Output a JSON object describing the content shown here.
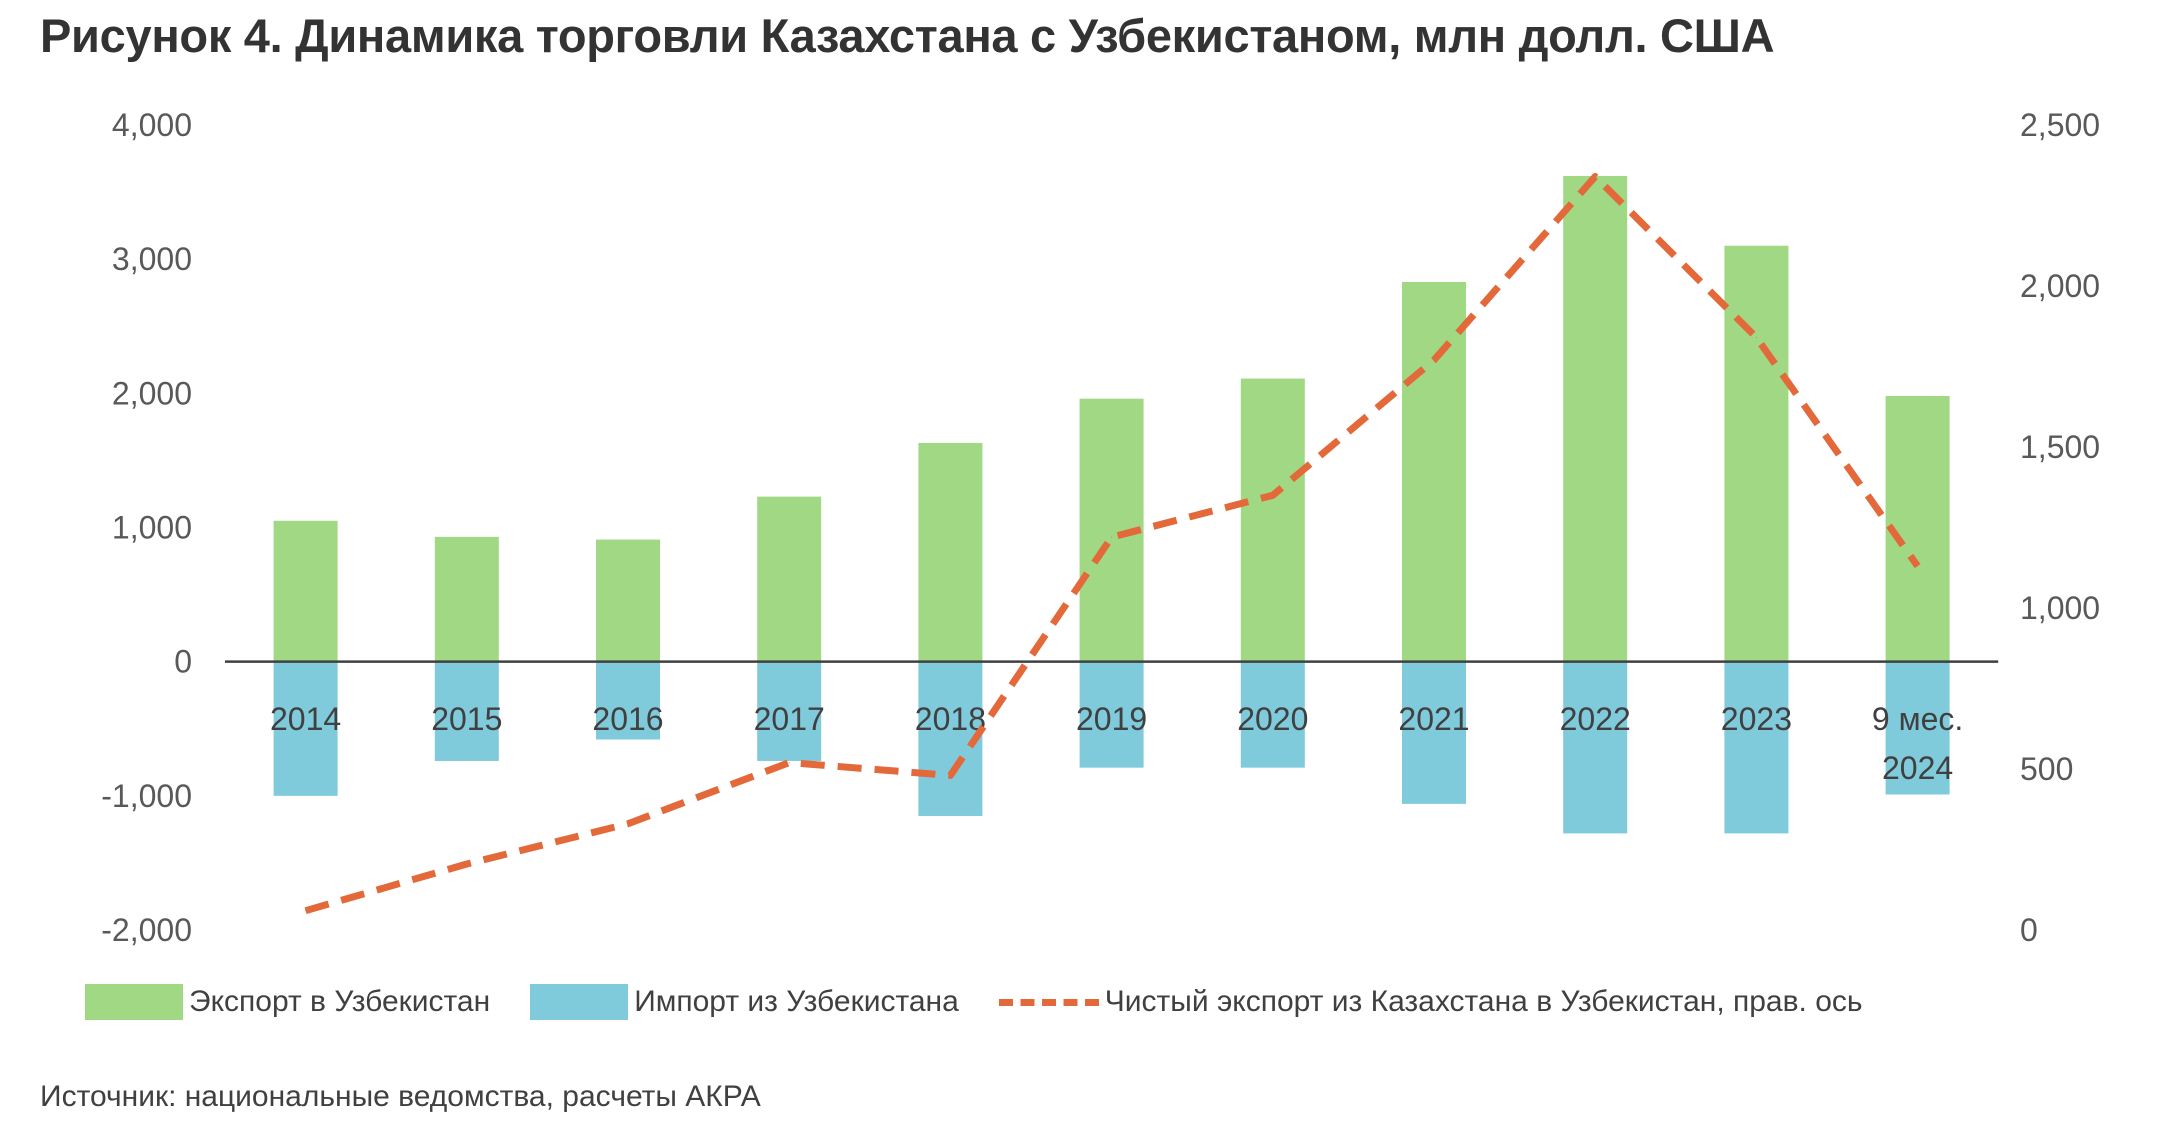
{
  "title": "Рисунок 4. Динамика торговли Казахстана с Узбекистаном, млн долл. США",
  "source": "Источник: национальные ведомства, расчеты АКРА",
  "colors": {
    "export": "#a0d883",
    "import": "#7fcadb",
    "net": "#e3693a",
    "axis": "#404040"
  },
  "chart_data": {
    "type": "bar",
    "categories": [
      "2014",
      "2015",
      "2016",
      "2017",
      "2018",
      "2019",
      "2020",
      "2021",
      "2022",
      "2023",
      "9 мес. 2024"
    ],
    "series": [
      {
        "name": "Экспорт в Узбекистан",
        "type": "bar",
        "axis": "left",
        "values": [
          1050,
          930,
          910,
          1230,
          1630,
          1960,
          2110,
          2830,
          3620,
          3100,
          1980
        ]
      },
      {
        "name": "Импорт из Узбекистана",
        "type": "bar",
        "axis": "left",
        "values": [
          -1000,
          -740,
          -580,
          -740,
          -1150,
          -790,
          -790,
          -1060,
          -1280,
          -1280,
          -990
        ]
      },
      {
        "name": "Чистый экспорт из Казахстана в Узбекистан, прав. ось",
        "type": "line",
        "axis": "right",
        "style": "dashed",
        "values": [
          60,
          205,
          330,
          520,
          480,
          1220,
          1350,
          1770,
          2340,
          1840,
          1130
        ]
      }
    ],
    "y_left": {
      "min": -2000,
      "max": 4000,
      "ticks": [
        "4,000",
        "3,000",
        "2,000",
        "1,000",
        "0",
        "-1,000",
        "-2,000"
      ]
    },
    "y_right": {
      "min": 0,
      "max": 2500,
      "ticks": [
        "2,500",
        "2,000",
        "1,500",
        "1,000",
        "500",
        "0"
      ]
    },
    "legend_position": "bottom",
    "grid": false
  }
}
